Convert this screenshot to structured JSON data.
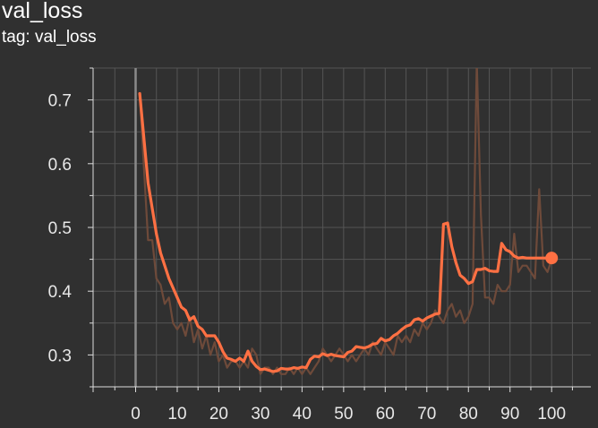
{
  "header": {
    "title": "val_loss",
    "tag": "tag: val_loss"
  },
  "colors": {
    "background": "#303030",
    "grid": "#555555",
    "axis": "#dddddd",
    "series": "#ff7043",
    "raw_series": "#6e4a3a"
  },
  "chart_data": {
    "type": "line",
    "title": "val_loss",
    "subtitle": "tag: val_loss",
    "xlabel": "",
    "ylabel": "",
    "xlim": [
      -10,
      110
    ],
    "ylim": [
      0.25,
      0.75
    ],
    "grid": true,
    "x_ticks": [
      0,
      10,
      20,
      30,
      40,
      50,
      60,
      70,
      80,
      90,
      100
    ],
    "x_tick_labels": [
      "0",
      "10",
      "20",
      "30",
      "40",
      "50",
      "60",
      "70",
      "80",
      "90",
      "100"
    ],
    "y_ticks": [
      0.3,
      0.4,
      0.5,
      0.6,
      0.7
    ],
    "y_tick_labels": [
      "0.3",
      "0.4",
      "0.5",
      "0.6",
      "0.7"
    ],
    "series": [
      {
        "role": "raw",
        "x": [
          1,
          3,
          4,
          5,
          6,
          7,
          8,
          9,
          10,
          11,
          12,
          13,
          14,
          15,
          16,
          17,
          18,
          19,
          20,
          21,
          22,
          23,
          24,
          25,
          26,
          27,
          28,
          29,
          30,
          31,
          32,
          33,
          34,
          35,
          36,
          37,
          38,
          39,
          40,
          41,
          42,
          43,
          44,
          45,
          46,
          47,
          48,
          49,
          50,
          51,
          52,
          53,
          54,
          55,
          56,
          57,
          58,
          59,
          60,
          61,
          62,
          63,
          64,
          65,
          66,
          67,
          68,
          69,
          70,
          71,
          72,
          73,
          74,
          75,
          76,
          77,
          78,
          79,
          80,
          81,
          82,
          83,
          84,
          85,
          86,
          87,
          88,
          89,
          90,
          91,
          92,
          93,
          94,
          95,
          96,
          97,
          98,
          99,
          100
        ],
        "values": [
          0.71,
          0.48,
          0.48,
          0.42,
          0.41,
          0.38,
          0.39,
          0.35,
          0.34,
          0.35,
          0.33,
          0.36,
          0.32,
          0.34,
          0.31,
          0.33,
          0.3,
          0.32,
          0.29,
          0.3,
          0.28,
          0.29,
          0.29,
          0.28,
          0.29,
          0.28,
          0.31,
          0.3,
          0.27,
          0.28,
          0.28,
          0.27,
          0.28,
          0.27,
          0.27,
          0.28,
          0.27,
          0.28,
          0.27,
          0.28,
          0.27,
          0.28,
          0.29,
          0.31,
          0.3,
          0.29,
          0.3,
          0.31,
          0.3,
          0.29,
          0.3,
          0.29,
          0.3,
          0.31,
          0.3,
          0.32,
          0.31,
          0.3,
          0.32,
          0.31,
          0.3,
          0.33,
          0.32,
          0.33,
          0.32,
          0.34,
          0.33,
          0.35,
          0.34,
          0.35,
          0.37,
          0.36,
          0.35,
          0.37,
          0.38,
          0.36,
          0.37,
          0.35,
          0.36,
          0.38,
          0.76,
          0.52,
          0.39,
          0.39,
          0.38,
          0.41,
          0.4,
          0.4,
          0.41,
          0.49,
          0.43,
          0.44,
          0.44,
          0.43,
          0.42,
          0.56,
          0.44,
          0.43,
          0.45
        ]
      },
      {
        "role": "smoothed",
        "x": [
          1,
          3,
          5,
          6,
          8,
          10,
          11,
          12,
          13,
          14,
          15,
          16,
          17,
          18,
          19,
          20,
          21,
          22,
          23,
          24,
          25,
          26,
          27,
          28,
          29,
          30,
          31,
          32,
          33,
          34,
          35,
          36,
          37,
          38,
          39,
          40,
          41,
          42,
          43,
          44,
          45,
          46,
          47,
          48,
          49,
          50,
          51,
          52,
          53,
          54,
          55,
          56,
          57,
          58,
          59,
          60,
          61,
          62,
          63,
          64,
          65,
          66,
          67,
          68,
          69,
          70,
          71,
          72,
          73,
          74,
          75,
          76,
          77,
          78,
          79,
          80,
          81,
          82,
          83,
          84,
          85,
          86,
          87,
          88,
          89,
          90,
          91,
          92,
          93,
          94,
          95,
          96,
          97,
          98,
          99,
          100
        ],
        "values": [
          0.71,
          0.57,
          0.49,
          0.46,
          0.42,
          0.39,
          0.375,
          0.37,
          0.355,
          0.36,
          0.345,
          0.34,
          0.33,
          0.33,
          0.33,
          0.32,
          0.305,
          0.295,
          0.293,
          0.29,
          0.295,
          0.29,
          0.306,
          0.29,
          0.282,
          0.277,
          0.278,
          0.276,
          0.274,
          0.275,
          0.279,
          0.278,
          0.278,
          0.28,
          0.279,
          0.281,
          0.28,
          0.293,
          0.298,
          0.297,
          0.302,
          0.299,
          0.301,
          0.299,
          0.298,
          0.297,
          0.304,
          0.306,
          0.313,
          0.312,
          0.311,
          0.313,
          0.317,
          0.318,
          0.326,
          0.322,
          0.324,
          0.33,
          0.334,
          0.34,
          0.345,
          0.347,
          0.355,
          0.357,
          0.353,
          0.358,
          0.361,
          0.364,
          0.365,
          0.505,
          0.507,
          0.47,
          0.445,
          0.425,
          0.42,
          0.412,
          0.415,
          0.434,
          0.434,
          0.436,
          0.432,
          0.431,
          0.431,
          0.475,
          0.465,
          0.462,
          0.455,
          0.452,
          0.453,
          0.452,
          0.452,
          0.452,
          0.452,
          0.452,
          0.452,
          0.452
        ],
        "marker": {
          "x": 100,
          "y": 0.452
        }
      }
    ]
  }
}
